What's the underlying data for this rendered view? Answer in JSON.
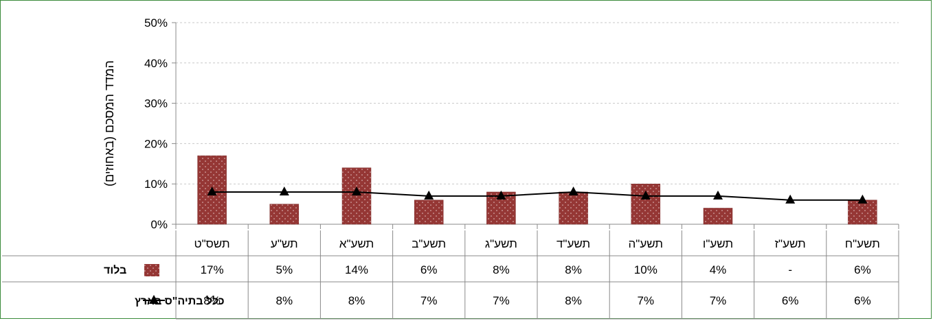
{
  "chart_data": {
    "type": "bar",
    "categories": [
      "תשס\"ט",
      "תש\"ע",
      "תשע\"א",
      "תשע\"ב",
      "תשע\"ג",
      "תשע\"ד",
      "תשע\"ה",
      "תשע\"ו",
      "תשע\"ז",
      "תשע\"ח"
    ],
    "series": [
      {
        "name": "בלוד",
        "type": "bar",
        "values": [
          17,
          5,
          14,
          6,
          8,
          8,
          10,
          4,
          null,
          6
        ],
        "table_values": [
          "17%",
          "5%",
          "14%",
          "6%",
          "8%",
          "8%",
          "10%",
          "4%",
          "-",
          "6%"
        ],
        "color": "#953735"
      },
      {
        "name": "כלל בתיה\"ס בארץ",
        "type": "line",
        "values": [
          8,
          8,
          8,
          7,
          7,
          8,
          7,
          7,
          6,
          6
        ],
        "table_values": [
          "8%",
          "8%",
          "8%",
          "7%",
          "7%",
          "8%",
          "7%",
          "7%",
          "6%",
          "6%"
        ],
        "color": "#000000"
      }
    ],
    "ylabel": "המדד המסכם (באחוזים)",
    "ylim": [
      0,
      50
    ],
    "yticks": [
      "0%",
      "10%",
      "20%",
      "30%",
      "40%",
      "50%"
    ],
    "grid": true,
    "data_table": true
  }
}
